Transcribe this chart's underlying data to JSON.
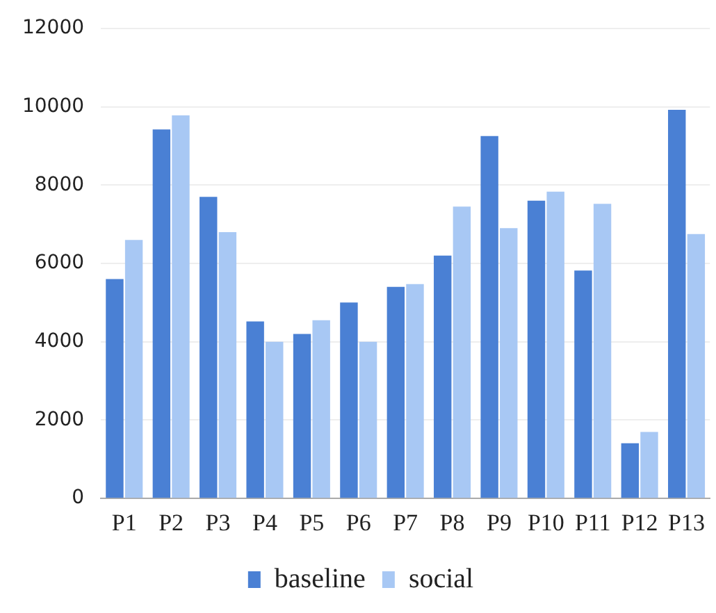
{
  "chart_data": {
    "type": "bar",
    "categories": [
      "P1",
      "P2",
      "P3",
      "P4",
      "P5",
      "P6",
      "P7",
      "P8",
      "P9",
      "P10",
      "P11",
      "P12",
      "P13"
    ],
    "series": [
      {
        "name": "baseline",
        "color": "#4a80d4",
        "values": [
          5600,
          9420,
          7700,
          4520,
          4200,
          5000,
          5400,
          6200,
          9250,
          7600,
          5820,
          1410,
          9920
        ]
      },
      {
        "name": "social",
        "color": "#a8c8f4",
        "values": [
          6600,
          9780,
          6800,
          4000,
          4550,
          4000,
          5470,
          7450,
          6900,
          7830,
          7520,
          1700,
          6750
        ]
      }
    ],
    "ylim": [
      0,
      12000
    ],
    "yticks": [
      0,
      2000,
      4000,
      6000,
      8000,
      10000,
      12000
    ],
    "grid": "y",
    "legend": "bottom"
  }
}
